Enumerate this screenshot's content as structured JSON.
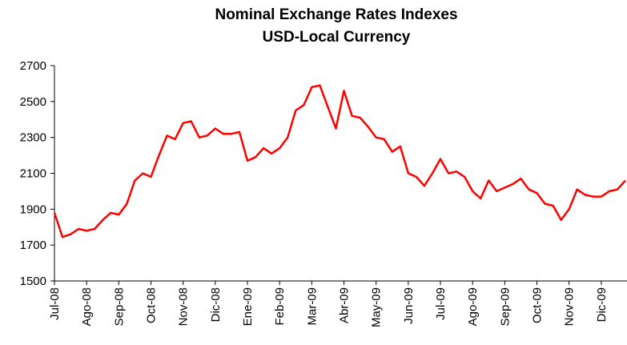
{
  "chart_data": {
    "type": "line",
    "title": "Nominal Exchange Rates Indexes",
    "subtitle": "USD-Local Currency",
    "categories": [
      "Jul-08",
      null,
      null,
      null,
      "Ago-08",
      null,
      null,
      null,
      "Sep-08",
      null,
      null,
      null,
      "Oct-08",
      null,
      null,
      null,
      "Nov-08",
      null,
      null,
      null,
      "Dic-08",
      null,
      null,
      null,
      "Ene-09",
      null,
      null,
      null,
      "Feb-09",
      null,
      null,
      null,
      "Mar-09",
      null,
      null,
      null,
      "Abr-09",
      null,
      null,
      null,
      "May-09",
      null,
      null,
      null,
      "Jun-09",
      null,
      null,
      null,
      "Jul-09",
      null,
      null,
      null,
      "Ago-09",
      null,
      null,
      null,
      "Sep-09",
      null,
      null,
      null,
      "Oct-09",
      null,
      null,
      null,
      "Nov-09",
      null,
      null,
      null,
      "Dic-09",
      null,
      null,
      null
    ],
    "series": [
      {
        "color": "#ff0000",
        "values": [
          1880,
          1745,
          1760,
          1790,
          1780,
          1790,
          1840,
          1880,
          1870,
          1930,
          2060,
          2100,
          2080,
          2200,
          2310,
          2290,
          2380,
          2390,
          2300,
          2310,
          2350,
          2320,
          2320,
          2330,
          2170,
          2190,
          2240,
          2210,
          2240,
          2300,
          2450,
          2480,
          2580,
          2590,
          2470,
          2350,
          2560,
          2420,
          2410,
          2360,
          2300,
          2290,
          2220,
          2250,
          2100,
          2080,
          2030,
          2100,
          2180,
          2100,
          2110,
          2080,
          2000,
          1960,
          2060,
          2000,
          2020,
          2040,
          2070,
          2010,
          1990,
          1930,
          1920,
          1840,
          1900,
          2010,
          1980,
          1970,
          1970,
          2000,
          2010,
          2060
        ]
      }
    ],
    "ylim": [
      1500,
      2700
    ],
    "yticks": [
      1500,
      1700,
      1900,
      2100,
      2300,
      2500,
      2700
    ],
    "grid": false
  }
}
